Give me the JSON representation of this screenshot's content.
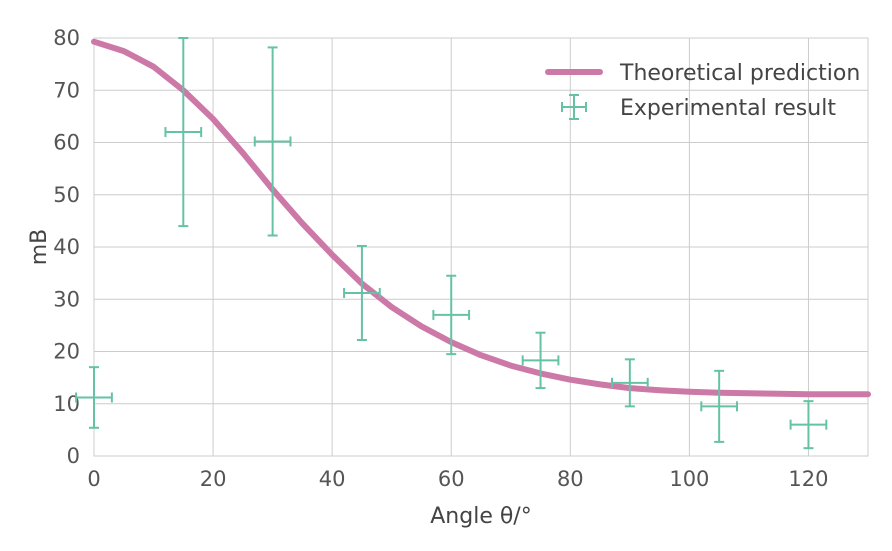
{
  "chart_data": {
    "type": "line",
    "xlabel": "Angle θ/°",
    "ylabel": "mB",
    "xlim": [
      0,
      130
    ],
    "ylim": [
      0,
      80
    ],
    "xticks": [
      0,
      20,
      40,
      60,
      80,
      100,
      120
    ],
    "yticks": [
      0,
      10,
      20,
      30,
      40,
      50,
      60,
      70,
      80
    ],
    "grid": true,
    "legend_position": "top-right",
    "series": [
      {
        "name": "Theoretical prediction",
        "kind": "line",
        "color": "#cc79a7",
        "x": [
          0,
          5,
          10,
          15,
          20,
          25,
          30,
          35,
          40,
          45,
          50,
          55,
          60,
          65,
          70,
          75,
          80,
          85,
          90,
          95,
          100,
          105,
          110,
          115,
          120,
          125,
          130
        ],
        "y": [
          79.3,
          77.5,
          74.5,
          70.0,
          64.5,
          58.0,
          51.0,
          44.5,
          38.5,
          33.0,
          28.5,
          24.8,
          21.8,
          19.3,
          17.3,
          15.8,
          14.6,
          13.7,
          13.0,
          12.6,
          12.3,
          12.1,
          12.0,
          11.9,
          11.8,
          11.8,
          11.8
        ]
      },
      {
        "name": "Experimental result",
        "kind": "errorbar",
        "color": "#66c2a5",
        "points": [
          {
            "x": 0,
            "y": 11.2,
            "xerr": 3,
            "yerr": 5.8
          },
          {
            "x": 15,
            "y": 62,
            "xerr": 3,
            "yerr": 18
          },
          {
            "x": 30,
            "y": 60.2,
            "xerr": 3,
            "yerr": 18
          },
          {
            "x": 45,
            "y": 31.2,
            "xerr": 3,
            "yerr": 9
          },
          {
            "x": 60,
            "y": 27,
            "xerr": 3,
            "yerr": 7.5
          },
          {
            "x": 75,
            "y": 18.3,
            "xerr": 3,
            "yerr": 5.3
          },
          {
            "x": 90,
            "y": 14,
            "xerr": 3,
            "yerr": 4.5
          },
          {
            "x": 105,
            "y": 9.5,
            "xerr": 3,
            "yerr": 6.8
          },
          {
            "x": 120,
            "y": 6,
            "xerr": 3,
            "yerr": 4.5
          }
        ]
      }
    ]
  }
}
